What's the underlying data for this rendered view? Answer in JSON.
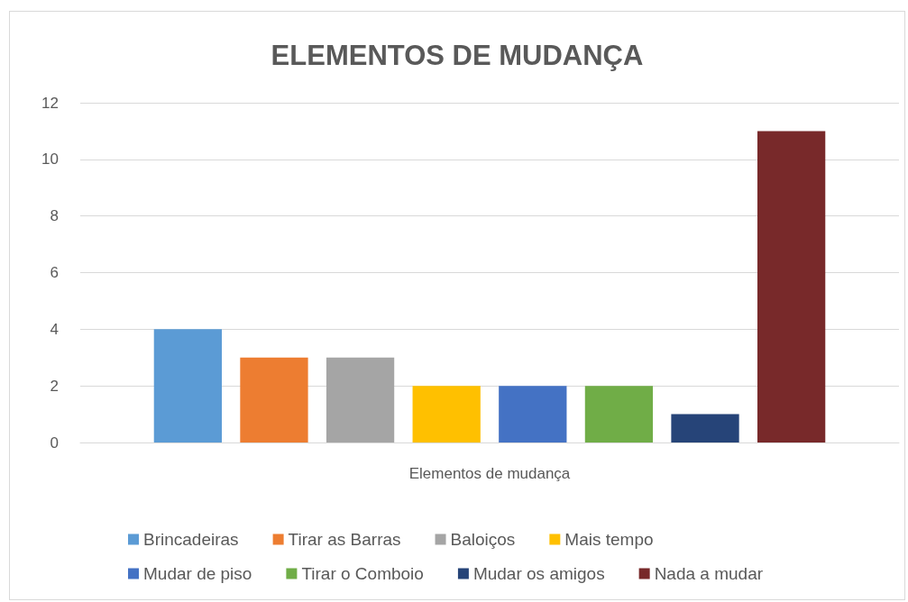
{
  "chart_data": {
    "type": "bar",
    "title": "ELEMENTOS DE MUDANÇA",
    "categories": [
      "Elementos de mudança"
    ],
    "series": [
      {
        "name": "Brincadeiras",
        "color": "#5b9bd5",
        "values": [
          4
        ]
      },
      {
        "name": "Tirar as Barras",
        "color": "#ed7d31",
        "values": [
          3
        ]
      },
      {
        "name": "Baloiços",
        "color": "#a5a5a5",
        "values": [
          3
        ]
      },
      {
        "name": "Mais tempo",
        "color": "#ffc000",
        "values": [
          2
        ]
      },
      {
        "name": "Mudar de piso",
        "color": "#4472c4",
        "values": [
          2
        ]
      },
      {
        "name": "Tirar o Comboio",
        "color": "#70ad47",
        "values": [
          2
        ]
      },
      {
        "name": "Mudar os amigos",
        "color": "#264478",
        "values": [
          1
        ]
      },
      {
        "name": "Nada a mudar",
        "color": "#78292a",
        "values": [
          11
        ]
      }
    ],
    "ylim": [
      0,
      12
    ],
    "yticks": [
      0,
      2,
      4,
      6,
      8,
      10,
      12
    ],
    "grid": "y",
    "legend": "bottom"
  }
}
